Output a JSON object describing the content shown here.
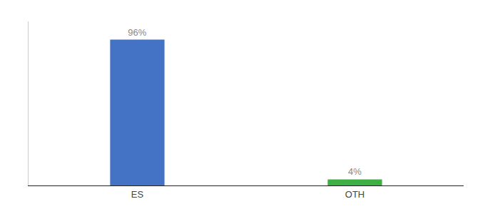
{
  "chart_data": {
    "type": "bar",
    "categories": [
      "ES",
      "OTH"
    ],
    "values": [
      96,
      4
    ],
    "value_labels": [
      "96%",
      "4%"
    ],
    "colors": [
      "#4472c4",
      "#3cb043"
    ],
    "ylim": [
      0,
      108
    ],
    "grid": false,
    "tick_labels": "x"
  }
}
